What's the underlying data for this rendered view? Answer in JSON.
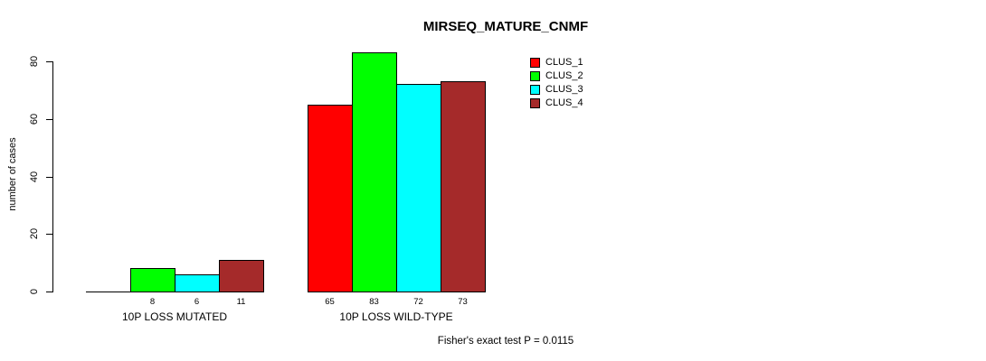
{
  "chart_data": {
    "type": "bar",
    "title": "MIRSEQ_MATURE_CNMF",
    "ylabel": "number of cases",
    "xlabel": "",
    "ylim": [
      0,
      80
    ],
    "yticks": [
      0,
      20,
      40,
      60,
      80
    ],
    "grid": false,
    "legend_position": "top-right",
    "categories": [
      "10P LOSS MUTATED",
      "10P LOSS WILD-TYPE"
    ],
    "series": [
      {
        "name": "CLUS_1",
        "color": "#FF0000",
        "values": [
          0,
          65
        ]
      },
      {
        "name": "CLUS_2",
        "color": "#00FF00",
        "values": [
          8,
          83
        ]
      },
      {
        "name": "CLUS_3",
        "color": "#00FFFF",
        "values": [
          6,
          72
        ]
      },
      {
        "name": "CLUS_4",
        "color": "#A52A2A",
        "values": [
          11,
          73
        ]
      }
    ],
    "bar_value_labels": [
      [
        "",
        "8",
        "6",
        "11"
      ],
      [
        "65",
        "83",
        "72",
        "73"
      ]
    ],
    "footnote": "Fisher's exact test P = 0.0115"
  }
}
